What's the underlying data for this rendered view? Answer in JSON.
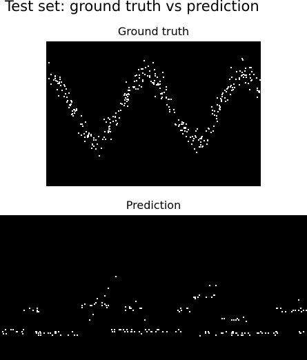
{
  "figure": {
    "title": "Test set: ground truth vs prediction"
  },
  "colors": {
    "background": "#000000",
    "points": "#ffffff"
  },
  "chart_data": [
    {
      "type": "scatter",
      "title": "Ground truth",
      "xlabel": "",
      "ylabel": "",
      "grid": false,
      "axes_visible": false,
      "description_of_pattern": "noisy sinusoid",
      "curve": {
        "cycles": 2.15,
        "phase": 1.6,
        "center": 0.55,
        "amplitude": 0.22,
        "noise": 0.045
      },
      "outliers": [
        [
          0.555,
          0.69
        ]
      ],
      "point_count": 330
    },
    {
      "type": "scatter",
      "title": "Prediction",
      "xlabel": "",
      "ylabel": "",
      "grid": false,
      "axes_visible": false,
      "baseline_level": 0.2,
      "segments": [
        [
          0.0,
          0.075,
          0.2
        ],
        [
          0.075,
          0.125,
          0.35
        ],
        [
          0.11,
          0.27,
          0.19
        ],
        [
          0.265,
          0.36,
          0.38
        ],
        [
          0.36,
          0.59,
          0.2
        ],
        [
          0.4,
          0.46,
          0.36
        ],
        [
          0.58,
          0.63,
          0.35
        ],
        [
          0.63,
          0.7,
          0.44
        ],
        [
          0.66,
          0.91,
          0.19
        ],
        [
          0.72,
          0.78,
          0.28
        ],
        [
          0.9,
          1.0,
          0.35
        ],
        [
          0.97,
          1.0,
          0.19
        ]
      ],
      "sparse_points": [
        [
          0.3,
          0.32
        ],
        [
          0.31,
          0.4
        ],
        [
          0.315,
          0.43
        ],
        [
          0.33,
          0.4
        ],
        [
          0.34,
          0.45
        ],
        [
          0.35,
          0.5
        ],
        [
          0.375,
          0.58
        ],
        [
          0.44,
          0.41
        ],
        [
          0.47,
          0.28
        ],
        [
          0.29,
          0.28
        ],
        [
          0.68,
          0.52
        ],
        [
          0.7,
          0.52
        ],
        [
          0.79,
          0.3
        ],
        [
          0.8,
          0.27
        ],
        [
          0.97,
          0.42
        ],
        [
          0.65,
          0.17
        ]
      ]
    }
  ]
}
